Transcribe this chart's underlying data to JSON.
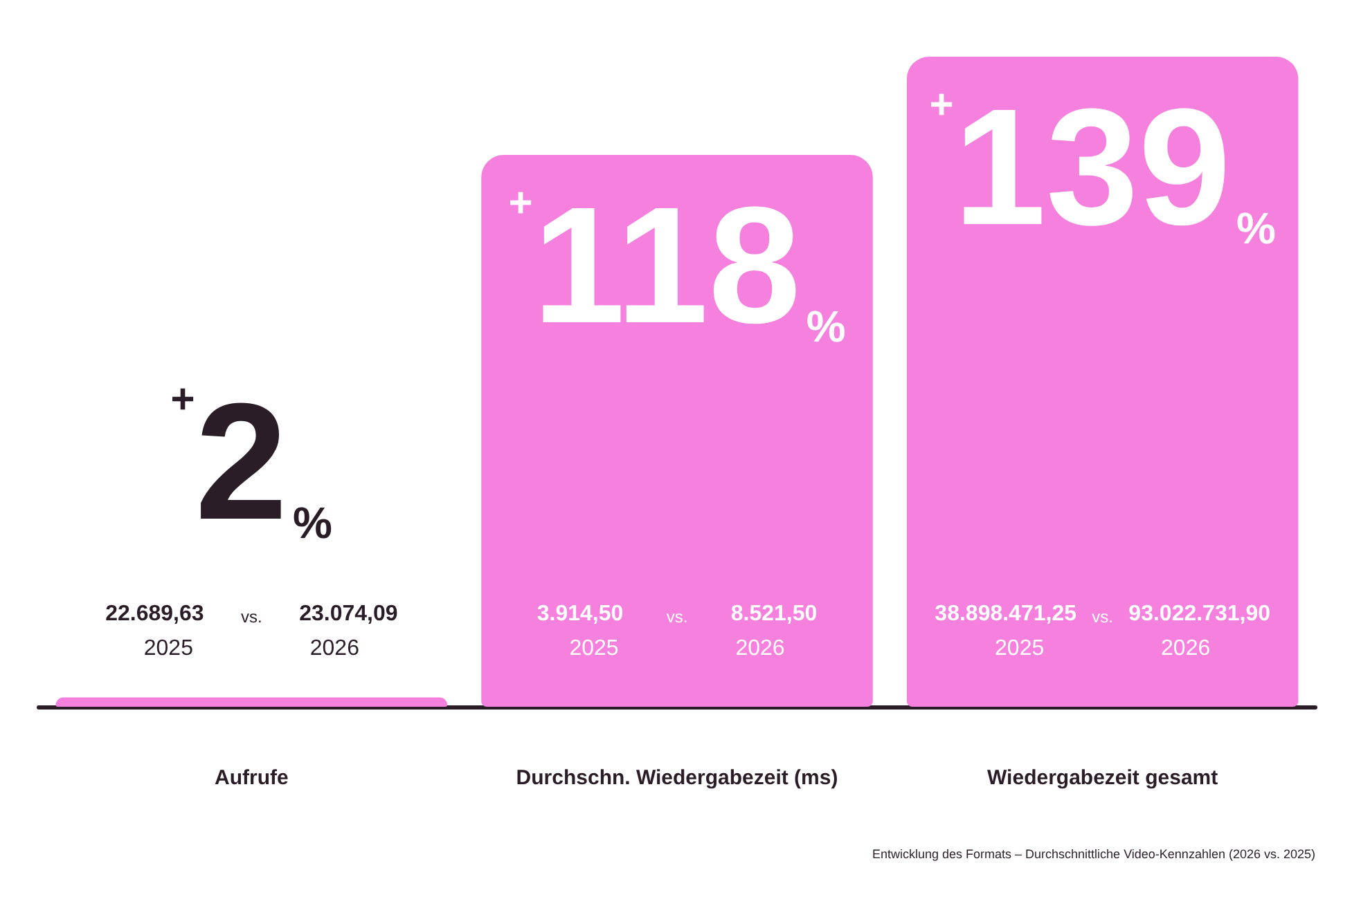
{
  "chart_data": {
    "type": "bar",
    "categories": [
      "Aufrufe",
      "Durchschn. Wiedergabezeit (ms)",
      "Wiedergabezeit gesamt"
    ],
    "values": [
      2,
      118,
      139
    ],
    "value_labels": [
      "+2%",
      "+118%",
      "+139%"
    ],
    "color": "#f580de",
    "annotations": [
      "22.689,63",
      "vs.",
      "23.074,09",
      "2025",
      "2026",
      "3.914,50",
      "vs.",
      "8.521,50",
      "2025",
      "2026",
      "38.898.471,25",
      "vs.",
      "93.022.731,90",
      "2025",
      "2026",
      "Entwicklung des Formats – Durchschnittliche Video-Kennzahlen (2026 vs. 2025)"
    ],
    "grid": false
  }
}
